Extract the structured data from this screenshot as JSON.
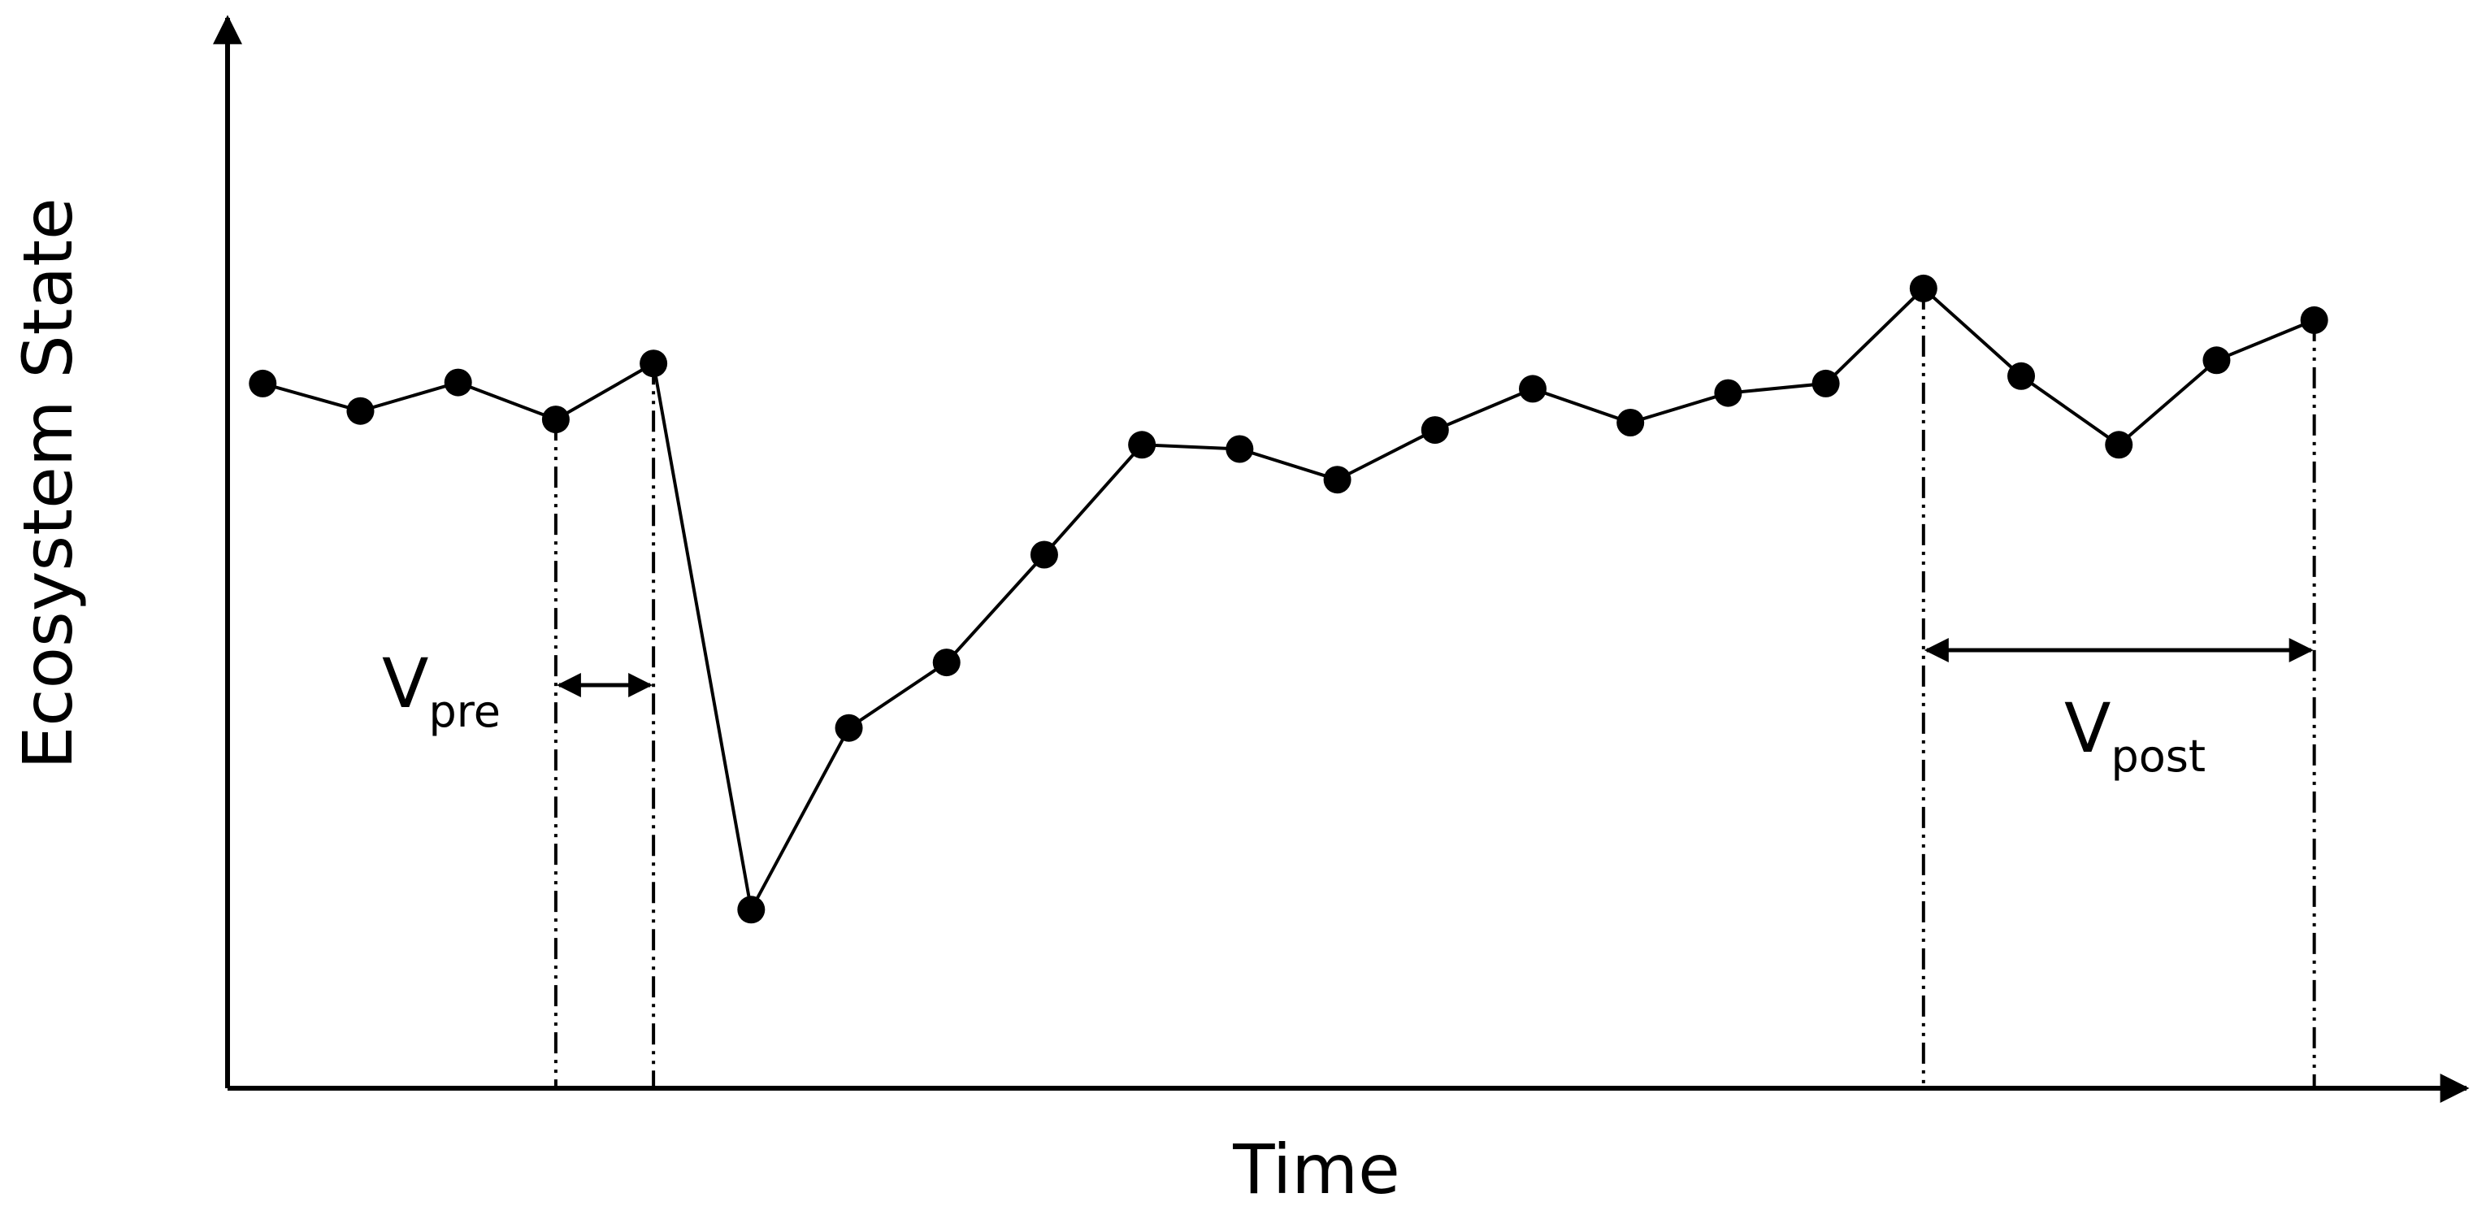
{
  "chart_data": {
    "type": "line",
    "x_label": "Time",
    "y_label": "Ecosystem State",
    "x": [
      1,
      2,
      3,
      4,
      5,
      6,
      7,
      8,
      9,
      10,
      11,
      12,
      13,
      14,
      15,
      16,
      17,
      18,
      19,
      20,
      21,
      22
    ],
    "series": [
      {
        "color": "#000000",
        "values": [
          66.7,
          64.1,
          66.8,
          63.3,
          68.6,
          16.9,
          34.1,
          40.3,
          50.5,
          60.9,
          60.5,
          57.6,
          62.3,
          66.2,
          63.0,
          65.8,
          66.7,
          75.7,
          67.4,
          60.9,
          68.9,
          72.7
        ]
      }
    ],
    "xlim": [
      0.64,
      23.6
    ],
    "ylim": [
      0,
      100
    ],
    "annotations": [
      {
        "text": "V",
        "subscript": "pre",
        "from": 4,
        "to": 5
      },
      {
        "text": "V",
        "subscript": "post",
        "from": 18,
        "to": 22
      }
    ]
  }
}
